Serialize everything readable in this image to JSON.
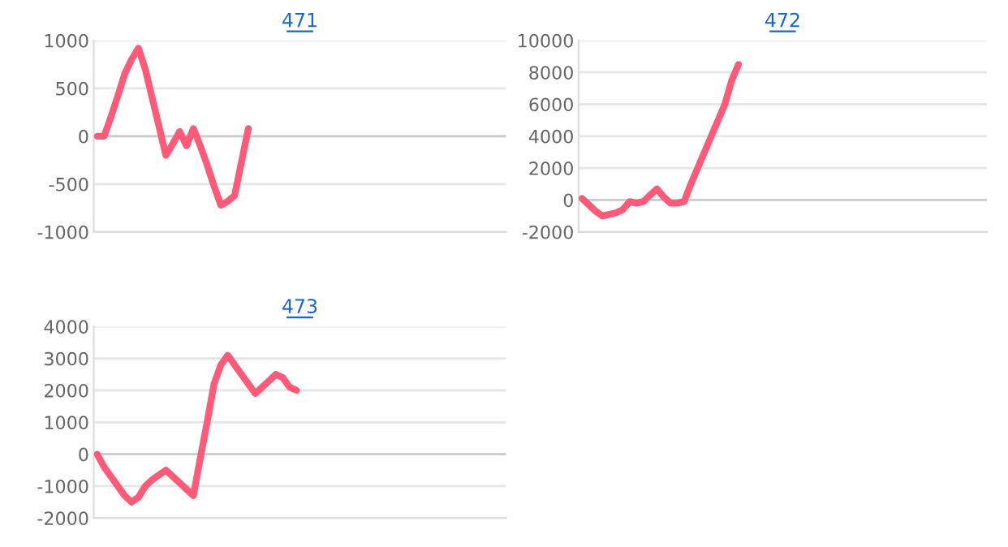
{
  "chart_data": [
    {
      "type": "line",
      "title": "471",
      "categories": [
        null,
        null,
        null,
        null,
        null,
        null,
        null,
        null,
        null,
        null,
        null,
        null,
        null,
        null,
        null,
        null,
        null,
        null,
        null,
        null,
        null,
        null,
        null,
        null,
        null,
        null,
        null,
        null,
        null,
        null,
        null,
        null,
        null,
        null,
        null,
        null,
        null,
        null,
        null,
        null,
        null,
        null,
        null,
        null,
        null,
        null,
        null,
        null,
        null,
        null,
        null,
        null,
        null,
        null,
        null,
        null,
        null,
        null,
        null,
        null
      ],
      "series": [
        {
          "color": "#ff5a78",
          "values": [
            0,
            0,
            200,
            420,
            650,
            800,
            920,
            700,
            400,
            100,
            -200,
            -80,
            50,
            -100,
            80,
            -100,
            -300,
            -520,
            -720,
            -680,
            -620,
            -270,
            80,
            null,
            null,
            null,
            null,
            null,
            null,
            null,
            null,
            null,
            null,
            null,
            null,
            null,
            null,
            null,
            null,
            null,
            null,
            null,
            null,
            null,
            null,
            null,
            null,
            null,
            null,
            null,
            null,
            null,
            null,
            null,
            null,
            null,
            null,
            null,
            null,
            null
          ]
        }
      ],
      "ylim": [
        -1000,
        1000
      ],
      "yticks": [
        -1000,
        -500,
        0,
        500,
        1000
      ],
      "grid": "y",
      "tick_labels": "y",
      "marker": "none",
      "line_style": "solid"
    },
    {
      "type": "line",
      "title": "472",
      "categories": [
        null,
        null,
        null,
        null,
        null,
        null,
        null,
        null,
        null,
        null,
        null,
        null,
        null,
        null,
        null,
        null,
        null,
        null,
        null,
        null,
        null,
        null,
        null,
        null,
        null,
        null,
        null,
        null,
        null,
        null,
        null,
        null,
        null,
        null,
        null,
        null,
        null,
        null,
        null,
        null,
        null,
        null,
        null,
        null,
        null,
        null,
        null,
        null,
        null,
        null,
        null,
        null,
        null,
        null,
        null,
        null,
        null,
        null,
        null,
        null
      ],
      "series": [
        {
          "color": "#ff5a78",
          "values": [
            100,
            -300,
            -700,
            -1000,
            -900,
            -800,
            -600,
            -100,
            -200,
            -100,
            300,
            700,
            200,
            -200,
            -200,
            -100,
            1000,
            2000,
            3000,
            4000,
            5000,
            6000,
            7500,
            8500,
            null,
            null,
            null,
            null,
            null,
            null,
            null,
            null,
            null,
            null,
            null,
            null,
            null,
            null,
            null,
            null,
            null,
            null,
            null,
            null,
            null,
            null,
            null,
            null,
            null,
            null,
            null,
            null,
            null,
            null,
            null,
            null,
            null,
            null,
            null,
            null
          ]
        }
      ],
      "ylim": [
        -2000,
        10000
      ],
      "yticks": [
        -2000,
        0,
        2000,
        4000,
        6000,
        8000,
        10000
      ],
      "grid": "y",
      "tick_labels": "y",
      "marker": "none",
      "line_style": "solid"
    },
    {
      "type": "line",
      "title": "473",
      "categories": [
        null,
        null,
        null,
        null,
        null,
        null,
        null,
        null,
        null,
        null,
        null,
        null,
        null,
        null,
        null,
        null,
        null,
        null,
        null,
        null,
        null,
        null,
        null,
        null,
        null,
        null,
        null,
        null,
        null,
        null,
        null,
        null,
        null,
        null,
        null,
        null,
        null,
        null,
        null,
        null,
        null,
        null,
        null,
        null,
        null,
        null,
        null,
        null,
        null,
        null,
        null,
        null,
        null,
        null,
        null,
        null,
        null,
        null,
        null,
        null
      ],
      "series": [
        {
          "color": "#ff5a78",
          "values": [
            0,
            -400,
            -700,
            -1000,
            -1300,
            -1500,
            -1350,
            -1000,
            -800,
            -650,
            -500,
            -700,
            -900,
            -1100,
            -1300,
            -130,
            1000,
            2200,
            2800,
            3100,
            2800,
            2500,
            2200,
            1900,
            2100,
            2300,
            2500,
            2400,
            2100,
            2000,
            null,
            null,
            null,
            null,
            null,
            null,
            null,
            null,
            null,
            null,
            null,
            null,
            null,
            null,
            null,
            null,
            null,
            null,
            null,
            null,
            null,
            null,
            null,
            null,
            null,
            null,
            null,
            null,
            null,
            null
          ]
        }
      ],
      "ylim": [
        -2000,
        4000
      ],
      "yticks": [
        -2000,
        -1000,
        0,
        1000,
        2000,
        3000,
        4000
      ],
      "grid": "y",
      "tick_labels": "y",
      "marker": "none",
      "line_style": "solid"
    }
  ]
}
